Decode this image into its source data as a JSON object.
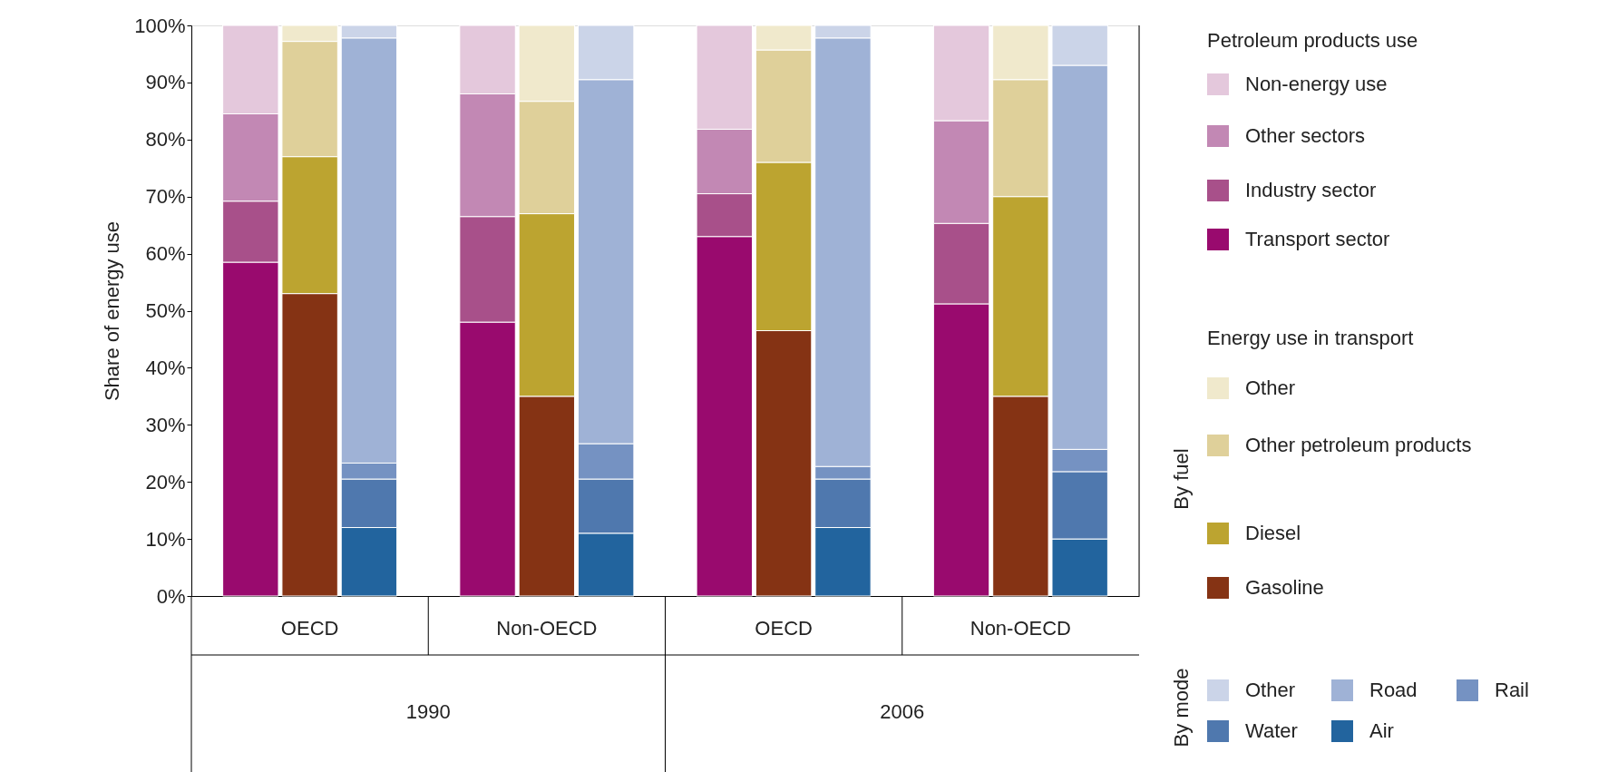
{
  "chart_data": {
    "type": "bar",
    "stacked": true,
    "ylabel": "Share of energy use",
    "categories": [
      null,
      null,
      null,
      null,
      null,
      null,
      null,
      null,
      null,
      null,
      null,
      null
    ],
    "ylim": [
      0,
      100
    ],
    "yticks": [
      {
        "value": 0,
        "label": "0%"
      },
      {
        "value": 10,
        "label": "10%"
      },
      {
        "value": 20,
        "label": "20%"
      },
      {
        "value": 30,
        "label": "30%"
      },
      {
        "value": 40,
        "label": "40%"
      },
      {
        "value": 50,
        "label": "50%"
      },
      {
        "value": 60,
        "label": "60%"
      },
      {
        "value": 70,
        "label": "70%"
      },
      {
        "value": 80,
        "label": "80%"
      },
      {
        "value": 90,
        "label": "90%"
      },
      {
        "value": 100,
        "label": "100%"
      }
    ],
    "legend": "right",
    "series": [
      {
        "name": "Transport sector",
        "color": "#990a6e",
        "values": [
          58.5,
          null,
          null,
          48,
          null,
          null,
          63,
          null,
          null,
          51.2,
          null,
          null
        ]
      },
      {
        "name": "Industry sector",
        "color": "#a8508a",
        "values": [
          10.7,
          null,
          null,
          18.5,
          null,
          null,
          7.5,
          null,
          null,
          14.1,
          null,
          null
        ]
      },
      {
        "name": "Other sectors",
        "color": "#c288b4",
        "values": [
          15.3,
          null,
          null,
          21.5,
          null,
          null,
          11.3,
          null,
          null,
          18,
          null,
          null
        ]
      },
      {
        "name": "Non-energy use",
        "color": "#e4c8dc",
        "values": [
          15.5,
          null,
          null,
          12,
          null,
          null,
          18.2,
          null,
          null,
          16.7,
          null,
          null
        ]
      },
      {
        "name": "Gasoline",
        "color": "#853314",
        "values": [
          null,
          53,
          null,
          null,
          35,
          null,
          null,
          46.5,
          null,
          null,
          35,
          null
        ]
      },
      {
        "name": "Diesel",
        "color": "#bca430",
        "values": [
          null,
          24,
          null,
          null,
          32,
          null,
          null,
          29.5,
          null,
          null,
          35,
          null
        ]
      },
      {
        "name": "Other petroleum products",
        "color": "#dfd09a",
        "values": [
          null,
          20.2,
          null,
          null,
          19.7,
          null,
          null,
          19.7,
          null,
          null,
          20.5,
          null
        ]
      },
      {
        "name": "Other",
        "color": "#f0e9cc",
        "values": [
          null,
          2.8,
          null,
          null,
          13.3,
          null,
          null,
          4.3,
          null,
          null,
          9.5,
          null
        ]
      },
      {
        "name": "Air",
        "color": "#22649e",
        "values": [
          null,
          null,
          12,
          null,
          null,
          11,
          null,
          null,
          12,
          null,
          null,
          10
        ]
      },
      {
        "name": "Water",
        "color": "#4f78ae",
        "values": [
          null,
          null,
          8.5,
          null,
          null,
          9.5,
          null,
          null,
          8.5,
          null,
          null,
          11.8
        ]
      },
      {
        "name": "Rail",
        "color": "#7592c2",
        "values": [
          null,
          null,
          2.8,
          null,
          null,
          6.2,
          null,
          null,
          2.2,
          null,
          null,
          3.9
        ]
      },
      {
        "name": "Road",
        "color": "#9fb2d6",
        "values": [
          null,
          null,
          74.5,
          null,
          null,
          63.8,
          null,
          null,
          75.1,
          null,
          null,
          67.3
        ]
      },
      {
        "name": "Other",
        "color": "#cbd4e8",
        "values": [
          null,
          null,
          2.2,
          null,
          null,
          9.5,
          null,
          null,
          2.2,
          null,
          null,
          7
        ]
      }
    ],
    "annotations": [
      "OECD",
      "Non-OECD",
      "OECD",
      "Non-OECD",
      "1990",
      "2006",
      "Petroleum  products use",
      "Energy use in transport",
      "By fuel",
      "By mode"
    ]
  }
}
